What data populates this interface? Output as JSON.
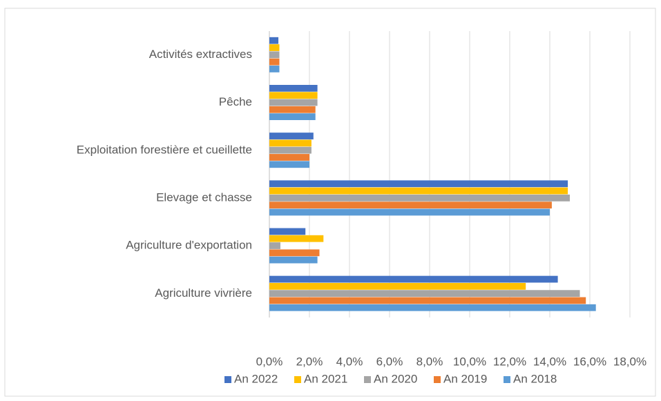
{
  "chart_data": {
    "type": "hbar",
    "categories": [
      "Activités extractives",
      "Pêche",
      "Exploitation forestière et cueillette",
      "Elevage et chasse",
      "Agriculture d'exportation",
      "Agriculture vivrière"
    ],
    "series": [
      {
        "name": "An 2022",
        "color": "#4472c4",
        "values": [
          0.45,
          2.4,
          2.2,
          14.9,
          1.8,
          14.4
        ]
      },
      {
        "name": "An 2021",
        "color": "#ffc000",
        "values": [
          0.5,
          2.4,
          2.1,
          14.9,
          2.7,
          12.8
        ]
      },
      {
        "name": "An 2020",
        "color": "#a5a5a5",
        "values": [
          0.5,
          2.4,
          2.1,
          15.0,
          0.55,
          15.5
        ]
      },
      {
        "name": "An 2019",
        "color": "#ed7d31",
        "values": [
          0.5,
          2.3,
          2.0,
          14.1,
          2.5,
          15.8
        ]
      },
      {
        "name": "An 2018",
        "color": "#5b9bd5",
        "values": [
          0.5,
          2.3,
          2.0,
          14.0,
          2.4,
          16.3
        ]
      }
    ],
    "xlim": [
      0,
      18
    ],
    "xticks": [
      {
        "value": 0,
        "label": "0,0%"
      },
      {
        "value": 2,
        "label": "2,0%"
      },
      {
        "value": 4,
        "label": "4,0%"
      },
      {
        "value": 6,
        "label": "6,0%"
      },
      {
        "value": 8,
        "label": "8,0%"
      },
      {
        "value": 10,
        "label": "10,0%"
      },
      {
        "value": 12,
        "label": "12,0%"
      },
      {
        "value": 14,
        "label": "14,0%"
      },
      {
        "value": 16,
        "label": "16,0%"
      },
      {
        "value": 18,
        "label": "18,0%"
      }
    ],
    "grid": true,
    "legend": "bottom"
  }
}
